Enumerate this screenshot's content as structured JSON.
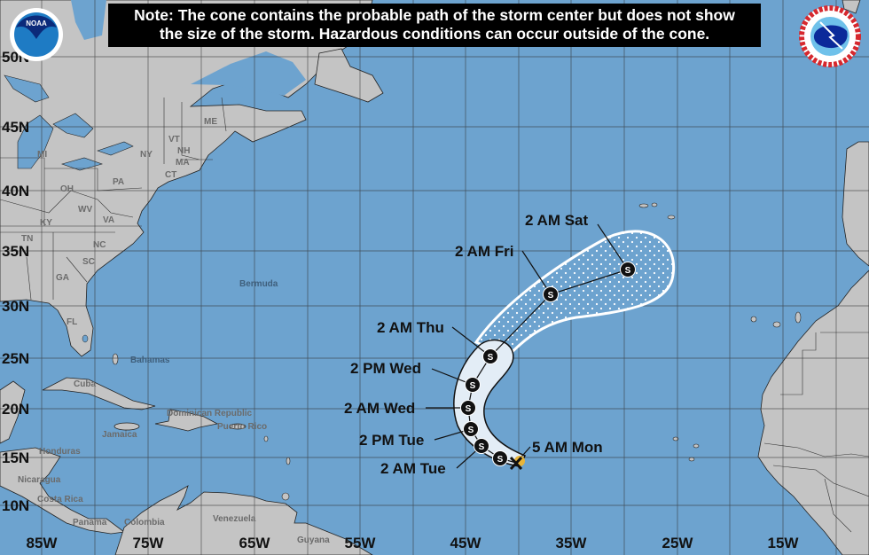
{
  "note": {
    "line1": "Note: The cone contains the probable path of the storm center but does not show",
    "line2": "the size of the storm. Hazardous conditions can occur outside of the cone."
  },
  "logos": {
    "noaa": "NOAA",
    "nws": "NATIONAL WEATHER SERVICE"
  },
  "latitude_labels": [
    "50N",
    "45N",
    "40N",
    "35N",
    "30N",
    "25N",
    "20N",
    "15N",
    "10N"
  ],
  "longitude_labels": [
    "85W",
    "75W",
    "65W",
    "55W",
    "45W",
    "35W",
    "25W",
    "15W"
  ],
  "places": {
    "states": [
      "ME",
      "VT",
      "NH",
      "MA",
      "CT",
      "NY",
      "PA",
      "MI",
      "OH",
      "WV",
      "VA",
      "KY",
      "TN",
      "NC",
      "SC",
      "GA",
      "FL"
    ],
    "ocean": [
      "Bermuda",
      "Bahamas"
    ],
    "countries": [
      "Cuba",
      "Dominican Republic",
      "Puerto Rico",
      "Jamaica",
      "Honduras",
      "Nicaragua",
      "Costa Rica",
      "Panama",
      "Colombia",
      "Venezuela",
      "Guyana"
    ]
  },
  "storm": {
    "current": {
      "label": "5 AM Mon",
      "marker": "x-icon"
    },
    "forecast_points": [
      {
        "label": "2 AM Tue",
        "symbol": "S"
      },
      {
        "label": "2 PM Tue",
        "symbol": "S"
      },
      {
        "label": "2 AM Wed",
        "symbol": "S"
      },
      {
        "label": "2 PM Wed",
        "symbol": "S"
      },
      {
        "label": "2 AM Thu",
        "symbol": "S"
      },
      {
        "label": "2 AM Fri",
        "symbol": "S"
      },
      {
        "label": "2 AM Sat",
        "symbol": "S"
      }
    ],
    "unlabeled_point_symbol": "S"
  },
  "colors": {
    "ocean": "#6da3cf",
    "land": "#c4c4c4",
    "cone_days_1_3": "#e3edf6",
    "cone_days_4_5": "white-dotted",
    "current_position": "#e8b53a"
  }
}
